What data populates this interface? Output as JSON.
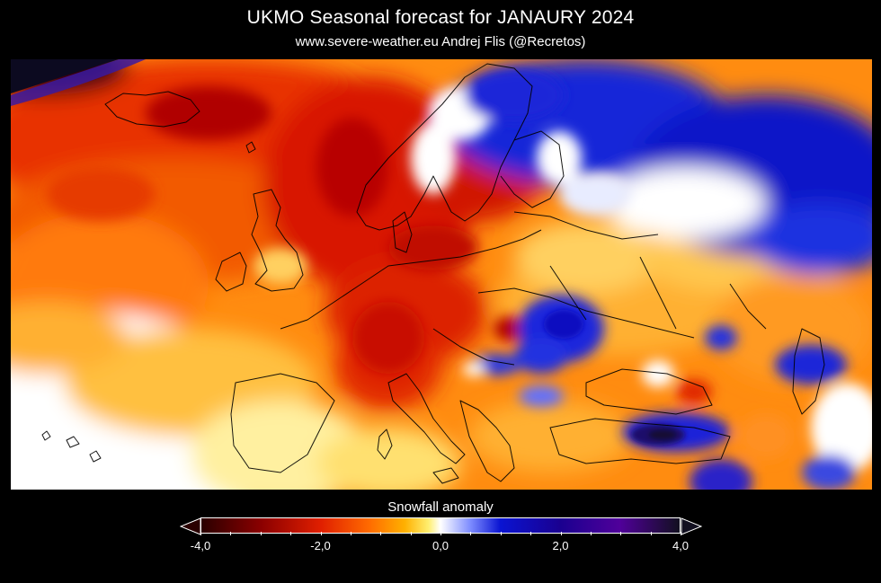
{
  "header": {
    "title": "UKMO Seasonal forecast for  JANAURY 2024",
    "subtitle": "www.severe-weather.eu  Andrej Flis (@Recretos)"
  },
  "legend": {
    "title": "Snowfall anomaly",
    "min_label": "-4,0",
    "ticks": [
      "-4,0",
      "-2,0",
      "0,0",
      "2,0",
      "4,0"
    ],
    "tick_values": [
      -4,
      -2,
      0,
      2,
      4
    ],
    "range": [
      -4,
      4
    ],
    "stops": [
      {
        "value": -4.0,
        "color": "#2a0000"
      },
      {
        "value": -3.0,
        "color": "#8b0000"
      },
      {
        "value": -2.0,
        "color": "#e01f00"
      },
      {
        "value": -1.2,
        "color": "#ff6a00"
      },
      {
        "value": -0.6,
        "color": "#ffb000"
      },
      {
        "value": -0.2,
        "color": "#ffef70"
      },
      {
        "value": 0.0,
        "color": "#ffffff"
      },
      {
        "value": 0.5,
        "color": "#7d8cff"
      },
      {
        "value": 1.0,
        "color": "#0a14d2"
      },
      {
        "value": 2.0,
        "color": "#1a0090"
      },
      {
        "value": 3.0,
        "color": "#50009a"
      },
      {
        "value": 4.0,
        "color": "#121020"
      }
    ]
  },
  "map": {
    "region": "Europe",
    "variable": "Snowfall anomaly",
    "colors": {
      "strong_deficit": "#a80000",
      "deficit": "#e32d00",
      "moderate_deficit": "#ff7a00",
      "slight_deficit": "#ffc040",
      "neutral": "#ffffff",
      "surplus": "#0a1ed8",
      "strong_surplus": "#1a0c6a"
    }
  }
}
